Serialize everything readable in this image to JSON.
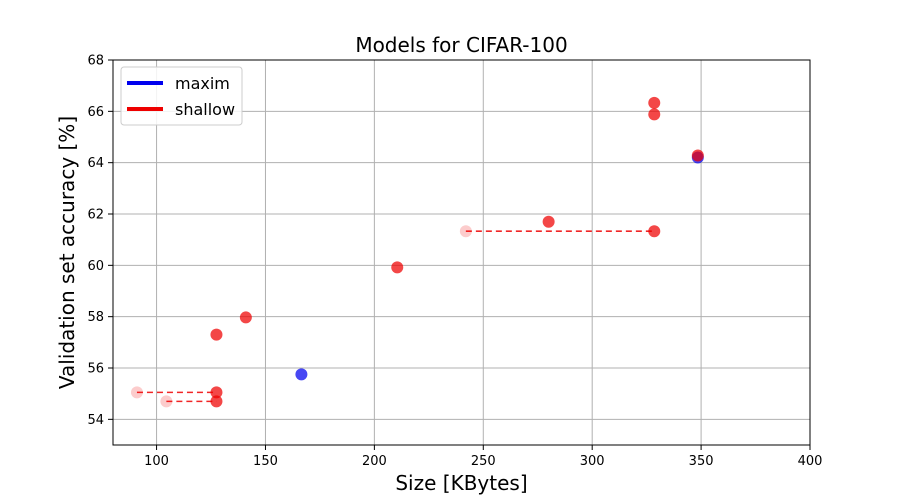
{
  "chart_data": {
    "type": "scatter",
    "title": "Models for CIFAR-100",
    "xlabel": "Size [KBytes]",
    "ylabel": "Validation set accuracy [%]",
    "xlim": [
      80,
      400
    ],
    "ylim": [
      53,
      68
    ],
    "xticks": [
      100,
      150,
      200,
      250,
      300,
      350,
      400
    ],
    "yticks": [
      54,
      56,
      58,
      60,
      62,
      64,
      66,
      68
    ],
    "grid": true,
    "legend_position": "top-left",
    "series": [
      {
        "name": "maxim",
        "color": "#0000ee",
        "points": [
          {
            "x": 166.5,
            "y": 55.75
          },
          {
            "x": 348.5,
            "y": 64.2
          }
        ]
      },
      {
        "name": "shallow",
        "color": "#ee0000",
        "points": [
          {
            "x": 127.5,
            "y": 55.05
          },
          {
            "x": 127.5,
            "y": 54.7
          },
          {
            "x": 127.5,
            "y": 57.3
          },
          {
            "x": 141.0,
            "y": 57.97
          },
          {
            "x": 210.5,
            "y": 59.92
          },
          {
            "x": 280.0,
            "y": 61.7
          },
          {
            "x": 328.5,
            "y": 61.33
          },
          {
            "x": 328.5,
            "y": 65.88
          },
          {
            "x": 328.5,
            "y": 66.33
          },
          {
            "x": 348.5,
            "y": 64.28
          }
        ],
        "faded_points": [
          {
            "x": 91.0,
            "y": 55.05
          },
          {
            "x": 104.5,
            "y": 54.7
          },
          {
            "x": 242.0,
            "y": 61.33
          }
        ],
        "dashed_links": [
          {
            "from": {
              "x": 91.0,
              "y": 55.05
            },
            "to": {
              "x": 127.5,
              "y": 55.05
            }
          },
          {
            "from": {
              "x": 104.5,
              "y": 54.7
            },
            "to": {
              "x": 127.5,
              "y": 54.7
            }
          },
          {
            "from": {
              "x": 242.0,
              "y": 61.33
            },
            "to": {
              "x": 328.5,
              "y": 61.33
            }
          }
        ]
      }
    ]
  }
}
